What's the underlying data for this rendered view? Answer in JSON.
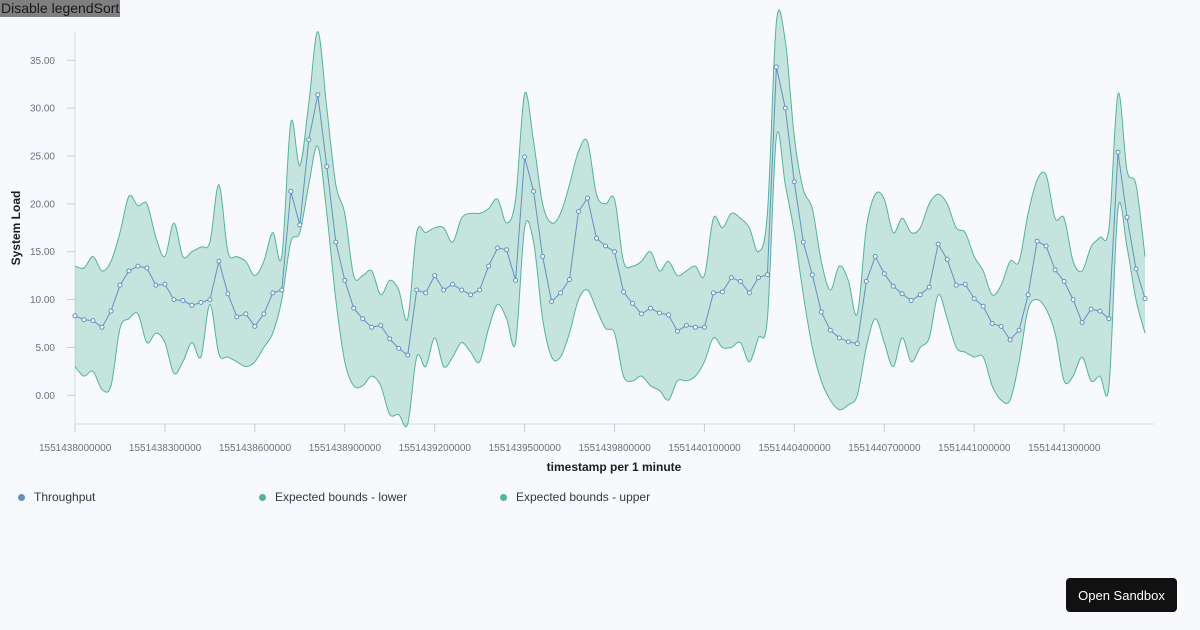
{
  "controls": {
    "disable_legend_label": "Disable legend",
    "sort_label": "Sort"
  },
  "legend": {
    "items": [
      {
        "label": "Throughput",
        "color": "#6092c0"
      },
      {
        "label": "Expected bounds - lower",
        "color": "#54b399"
      },
      {
        "label": "Expected bounds - upper",
        "color": "#54b399"
      }
    ]
  },
  "sandbox": {
    "label": "Open Sandbox"
  },
  "colors": {
    "line": "#6092c0",
    "band_fill": "#54b399",
    "background": "#f8f9fd"
  },
  "chart_data": {
    "type": "area",
    "title": "",
    "xlabel": "timestamp per 1 minute",
    "ylabel": "System Load",
    "xlim": [
      1551438000000,
      1551441600000
    ],
    "ylim": [
      -3,
      39
    ],
    "x_ticks": [
      1551438000000,
      1551438300000,
      1551438600000,
      1551438900000,
      1551439200000,
      1551439500000,
      1551439800000,
      1551440100000,
      1551440400000,
      1551440700000,
      1551441000000,
      1551441300000
    ],
    "x_tick_labels": [
      "1551438000000",
      "1551438300000",
      "1551438600000",
      "1551438900000",
      "1551439200000",
      "1551439500000",
      "1551439800000",
      "1551440100000",
      "1551440400000",
      "1551440700000",
      "1551441000000",
      "1551441300000"
    ],
    "y_ticks": [
      0,
      5,
      10,
      15,
      20,
      25,
      30,
      35
    ],
    "y_tick_labels": [
      "0.00",
      "5.00",
      "10.00",
      "15.00",
      "20.00",
      "25.00",
      "30.00",
      "35.00"
    ],
    "x_start": 1551438000000,
    "x_step": 30000,
    "series": [
      {
        "name": "Throughput",
        "values": [
          8.3,
          7.9,
          7.8,
          7.1,
          8.8,
          11.5,
          13.0,
          13.5,
          13.3,
          11.5,
          11.6,
          10.0,
          9.9,
          9.4,
          9.7,
          10.0,
          14.0,
          10.6,
          8.2,
          8.5,
          7.2,
          8.5,
          10.7,
          11.0,
          21.3,
          17.8,
          26.7,
          31.4,
          23.9,
          16.0,
          12.0,
          9.1,
          8.0,
          7.1,
          7.3,
          5.9,
          4.9,
          4.2,
          11.0,
          10.7,
          12.5,
          11.0,
          11.6,
          11.0,
          10.5,
          11.0,
          13.5,
          15.4,
          15.2,
          12.0,
          24.9,
          21.3,
          14.5,
          9.8,
          10.7,
          12.1,
          19.2,
          20.6,
          16.4,
          15.6,
          15.0,
          10.8,
          9.6,
          8.5,
          9.1,
          8.6,
          8.4,
          6.7,
          7.3,
          7.1,
          7.1,
          10.7,
          10.8,
          12.3,
          11.9,
          10.7,
          12.3,
          12.6,
          34.3,
          30.0,
          22.3,
          16.0,
          12.6,
          8.7,
          6.8,
          6.0,
          5.6,
          5.4,
          11.9,
          14.5,
          12.7,
          11.4,
          10.6,
          9.9,
          10.5,
          11.3,
          15.8,
          14.2,
          11.5,
          11.6,
          10.1,
          9.3,
          7.5,
          7.2,
          5.8,
          6.8,
          10.5,
          16.1,
          15.6,
          13.1,
          11.9,
          10.0,
          7.6,
          9.0,
          8.8,
          8.0,
          25.4,
          18.6,
          13.2,
          10.1
        ]
      },
      {
        "name": "Expected bounds - lower",
        "values": [
          3.0,
          2.0,
          2.5,
          0.6,
          1.0,
          7.0,
          8.0,
          8.5,
          5.5,
          6.5,
          5.5,
          2.3,
          3.5,
          5.5,
          4.0,
          9.5,
          4.3,
          4.0,
          3.5,
          3.0,
          3.5,
          5.0,
          6.5,
          10.0,
          16.0,
          17.0,
          22.0,
          26.0,
          19.0,
          10.0,
          3.5,
          1.0,
          1.0,
          2.0,
          1.0,
          -2.0,
          -2.0,
          -3.0,
          4.0,
          3.0,
          6.0,
          3.0,
          4.0,
          5.5,
          4.5,
          3.5,
          7.0,
          9.5,
          8.0,
          5.5,
          17.5,
          16.0,
          8.0,
          4.0,
          4.0,
          6.5,
          10.0,
          11.0,
          9.0,
          7.0,
          6.5,
          2.0,
          1.5,
          2.0,
          1.0,
          0.5,
          -0.5,
          1.5,
          1.5,
          2.0,
          3.5,
          6.0,
          5.0,
          5.0,
          5.5,
          3.5,
          6.0,
          8.0,
          27.0,
          22.0,
          17.0,
          10.5,
          5.0,
          1.5,
          -0.5,
          -1.5,
          -1.0,
          0.0,
          5.0,
          8.0,
          5.5,
          3.0,
          6.0,
          3.5,
          5.0,
          6.0,
          10.5,
          8.0,
          5.0,
          4.5,
          4.0,
          4.0,
          1.0,
          -0.5,
          -0.5,
          3.5,
          9.0,
          10.0,
          9.0,
          6.5,
          1.5,
          2.0,
          4.0,
          1.5,
          2.0,
          1.0,
          19.5,
          15.5,
          10.0,
          6.5
        ]
      },
      {
        "name": "Expected bounds - upper",
        "values": [
          13.5,
          13.3,
          14.5,
          13.0,
          14.0,
          17.0,
          20.8,
          19.8,
          20.0,
          16.5,
          14.5,
          18.0,
          14.5,
          15.0,
          15.5,
          16.0,
          22.0,
          15.0,
          14.5,
          14.0,
          12.5,
          14.0,
          17.0,
          14.5,
          28.5,
          24.0,
          30.5,
          38.0,
          30.0,
          22.0,
          19.0,
          12.5,
          12.5,
          13.0,
          10.5,
          12.0,
          11.0,
          8.0,
          17.0,
          17.0,
          17.5,
          17.5,
          16.0,
          18.5,
          19.0,
          19.0,
          19.5,
          20.5,
          18.0,
          20.5,
          31.5,
          26.5,
          20.0,
          18.0,
          19.0,
          22.0,
          25.5,
          26.5,
          21.0,
          20.0,
          20.5,
          14.0,
          13.5,
          14.0,
          15.0,
          13.0,
          14.0,
          12.5,
          13.0,
          13.5,
          12.5,
          18.5,
          17.5,
          19.0,
          18.5,
          17.5,
          15.0,
          19.0,
          39.0,
          37.0,
          27.0,
          21.5,
          19.5,
          14.0,
          11.0,
          13.5,
          12.0,
          8.5,
          17.5,
          21.0,
          20.5,
          17.0,
          18.5,
          17.0,
          17.5,
          20.0,
          21.0,
          20.0,
          17.5,
          17.0,
          14.5,
          13.0,
          10.5,
          11.5,
          14.0,
          14.0,
          19.0,
          22.5,
          23.0,
          18.5,
          18.5,
          14.0,
          13.0,
          15.5,
          16.5,
          17.5,
          31.5,
          23.5,
          22.0,
          14.5
        ]
      }
    ],
    "legend_position": "bottom-left"
  }
}
